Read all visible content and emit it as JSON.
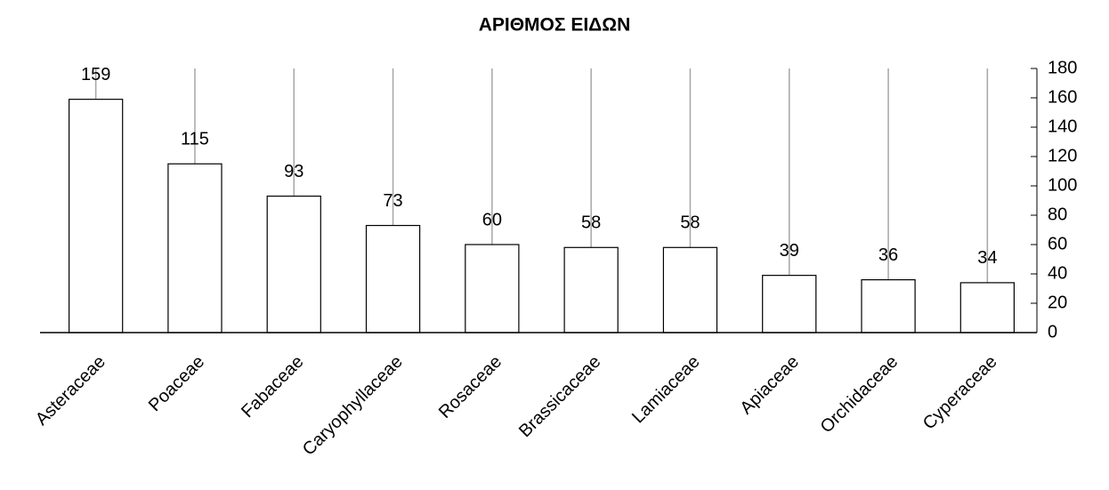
{
  "chart_data": {
    "type": "bar",
    "title": "ΑΡΙΘΜΟΣ ΕΙΔΩΝ",
    "categories": [
      "Asteraceae",
      "Poaceae",
      "Fabaceae",
      "Caryophyllaceae",
      "Rosaceae",
      "Brassicaceae",
      "Lamiaceae",
      "Apiaceae",
      "Orchidaceae",
      "Cyperaceae"
    ],
    "values": [
      159,
      115,
      93,
      73,
      60,
      58,
      58,
      39,
      36,
      34
    ],
    "color": "#ffffff",
    "edgecolor": "#000000",
    "ylim": [
      0,
      180
    ],
    "yticks": [
      0,
      20,
      40,
      60,
      80,
      100,
      120,
      140,
      160,
      180
    ],
    "y_axis_side": "right"
  }
}
